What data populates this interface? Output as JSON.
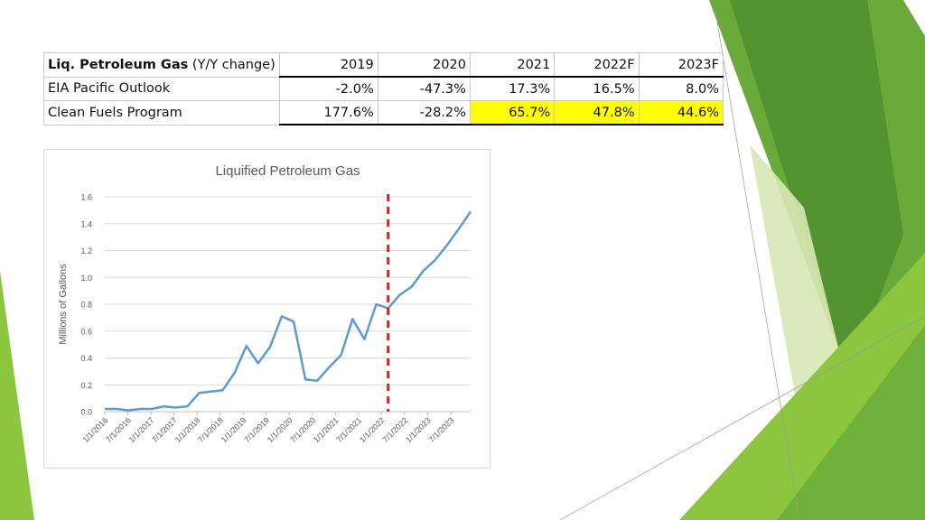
{
  "colors": {
    "line": "#5b9bd5",
    "marker": "#e02020",
    "highlight": "#ffff00",
    "green_dark": "#4e8f2e",
    "green_mid": "#6aaa3a",
    "green_light": "#8cc63f",
    "green_pale": "#d7e8b5"
  },
  "table": {
    "title_bold": "Liq. Petroleum Gas",
    "title_rest": " (Y/Y change)",
    "years": [
      "2019",
      "2020",
      "2021",
      "2022F",
      "2023F"
    ],
    "rows": [
      {
        "label": "EIA Pacific Outlook",
        "values": [
          "-2.0%",
          "-47.3%",
          "17.3%",
          "16.5%",
          "8.0%"
        ],
        "highlight": [
          false,
          false,
          false,
          false,
          false
        ]
      },
      {
        "label": "Clean Fuels Program",
        "values": [
          "177.6%",
          "-28.2%",
          "65.7%",
          "47.8%",
          "44.6%"
        ],
        "highlight": [
          false,
          false,
          true,
          true,
          true
        ]
      }
    ]
  },
  "chart_data": {
    "type": "line",
    "title": "Liquified Petroleum Gas",
    "ylabel": "Millions of Gallons",
    "xlabel": "",
    "ylim": [
      0,
      1.6
    ],
    "yticks": [
      "0.0",
      "0.2",
      "0.4",
      "0.6",
      "0.8",
      "1.0",
      "1.2",
      "1.4",
      "1.6"
    ],
    "xtick_labels": [
      "1/1/2016",
      "7/1/2016",
      "1/1/2017",
      "7/1/2017",
      "1/1/2018",
      "7/1/2018",
      "1/1/2019",
      "7/1/2019",
      "1/1/2020",
      "7/1/2020",
      "1/1/2021",
      "7/1/2021",
      "1/1/2022",
      "7/1/2022",
      "1/1/2023",
      "7/1/2023"
    ],
    "grid": true,
    "legend": "none",
    "series": [
      {
        "x": [
          "2016-01",
          "2016-04",
          "2016-07",
          "2016-10",
          "2017-01",
          "2017-04",
          "2017-07",
          "2017-10",
          "2018-01",
          "2018-04",
          "2018-07",
          "2018-10",
          "2019-01",
          "2019-04",
          "2019-07",
          "2019-10",
          "2020-01",
          "2020-04",
          "2020-07",
          "2020-10",
          "2021-01",
          "2021-04",
          "2021-07",
          "2021-10",
          "2022-01",
          "2022-04",
          "2022-07",
          "2022-10",
          "2023-01",
          "2023-04",
          "2023-07",
          "2023-10"
        ],
        "values": [
          0.02,
          0.02,
          0.01,
          0.02,
          0.02,
          0.04,
          0.03,
          0.04,
          0.14,
          0.15,
          0.16,
          0.29,
          0.49,
          0.36,
          0.48,
          0.71,
          0.67,
          0.24,
          0.23,
          0.33,
          0.42,
          0.69,
          0.54,
          0.8,
          0.77,
          0.87,
          0.93,
          1.05,
          1.13,
          1.24,
          1.36,
          1.49
        ]
      }
    ],
    "vertical_marker_x": "2022-01"
  }
}
